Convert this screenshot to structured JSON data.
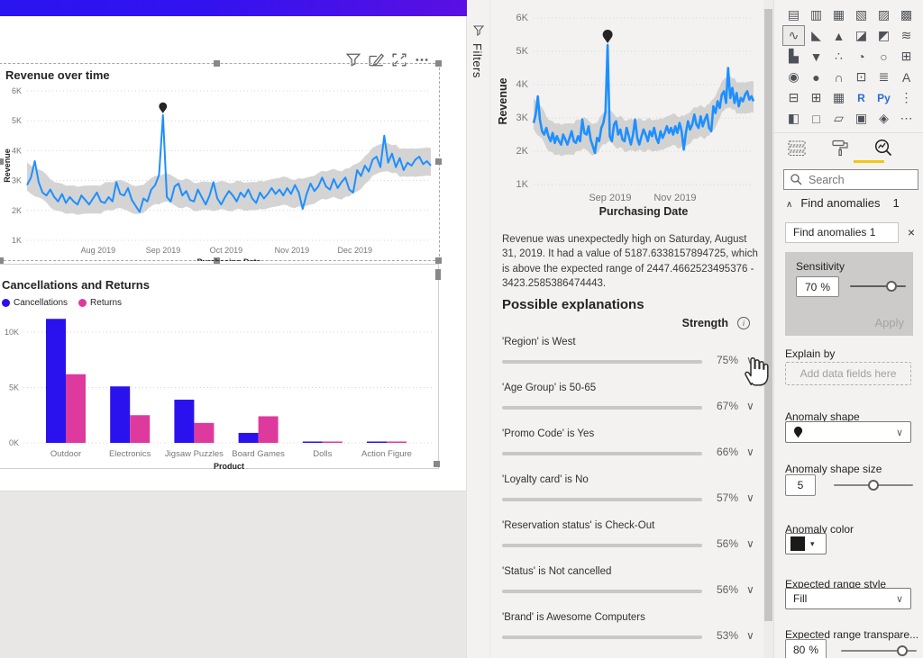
{
  "report": {
    "visual_header_icons": [
      "filter",
      "edit",
      "focus-mode",
      "more-options"
    ]
  },
  "filters_pane": {
    "title": "Filters"
  },
  "chart_data": [
    {
      "type": "line",
      "title": "Revenue over time",
      "xlabel": "Purchasing Date",
      "ylabel": "Revenue",
      "ylim": [
        1000,
        6000
      ],
      "y_ticks": [
        "1K",
        "2K",
        "3K",
        "4K",
        "5K",
        "6K"
      ],
      "x_ticks": [
        {
          "f": 0.176,
          "label": "Aug 2019"
        },
        {
          "f": 0.337,
          "label": "Sep 2019"
        },
        {
          "f": 0.493,
          "label": "Oct 2019"
        },
        {
          "f": 0.656,
          "label": "Nov 2019"
        },
        {
          "f": 0.812,
          "label": "Dec 2019"
        }
      ],
      "values_k": [
        2.85,
        3.1,
        3.65,
        2.95,
        2.6,
        2.5,
        2.7,
        2.45,
        2.3,
        2.55,
        2.25,
        2.45,
        2.3,
        2.2,
        2.5,
        2.35,
        2.2,
        2.4,
        2.6,
        2.3,
        2.25,
        2.45,
        2.3,
        2.95,
        2.55,
        2.5,
        2.75,
        2.35,
        2.15,
        1.95,
        2.4,
        2.3,
        2.7,
        2.85,
        3.2,
        5.19,
        2.45,
        2.3,
        2.8,
        2.9,
        2.5,
        2.65,
        2.35,
        2.3,
        2.7,
        2.45,
        2.2,
        2.5,
        2.95,
        2.4,
        2.2,
        2.45,
        2.65,
        2.5,
        2.3,
        2.6,
        2.45,
        2.7,
        2.4,
        2.25,
        2.6,
        2.4,
        2.55,
        2.75,
        2.55,
        2.7,
        2.5,
        2.75,
        2.55,
        2.85,
        2.6,
        2.05,
        2.55,
        2.9,
        2.65,
        2.8,
        3.1,
        2.8,
        2.7,
        3.05,
        2.75,
        2.95,
        3.1,
        2.7,
        2.6,
        3.35,
        3.15,
        3.5,
        3.3,
        3.7,
        3.8,
        3.45,
        4.5,
        3.6,
        3.9,
        3.45,
        3.75,
        3.35,
        3.6,
        3.5,
        3.7,
        3.8,
        3.55,
        3.65,
        3.5
      ],
      "anomaly": {
        "index": 35,
        "value": 5187.6338157894725,
        "date": "Saturday, August 31, 2019",
        "expected_low": 2447.4662523495376,
        "expected_high": 3423.2585386474443
      },
      "line_color": "#1e8fff",
      "band_color": "#c9c9c9",
      "marker_color": "#252423"
    },
    {
      "type": "bar",
      "title": "Cancellations and Returns",
      "xlabel": "Product",
      "y_ticks": [
        "0K",
        "5K",
        "10K"
      ],
      "categories": [
        "Outdoor",
        "Electronics",
        "Jigsaw Puzzles",
        "Board Games",
        "Dolls",
        "Action Figure"
      ],
      "series": [
        {
          "name": "Cancellations",
          "color": "#2a12ef",
          "values_k": [
            11.2,
            5.1,
            3.9,
            0.9,
            0.12,
            0.12
          ]
        },
        {
          "name": "Returns",
          "color": "#de3a9d",
          "values_k": [
            6.2,
            2.5,
            1.8,
            2.4,
            0.12,
            0.08
          ]
        }
      ]
    }
  ],
  "anomalies_pane": {
    "chart_x_ticks": [
      {
        "f": 0.348,
        "label": "Sep 2019"
      },
      {
        "f": 0.643,
        "label": "Nov 2019"
      }
    ],
    "explanation_text": "Revenue was unexpectedly high on Saturday, August 31, 2019. It had a value of 5187.6338157894725, which is above the expected range of 2447.4662523495376 - 3423.2585386474443.",
    "heading": "Possible explanations",
    "strength_label": "Strength",
    "explanations": [
      {
        "label": "'Region' is West",
        "strength_pct": 75
      },
      {
        "label": "'Age Group' is 50-65",
        "strength_pct": 67
      },
      {
        "label": "'Promo Code' is Yes",
        "strength_pct": 66
      },
      {
        "label": "'Loyalty card' is No",
        "strength_pct": 57
      },
      {
        "label": "'Reservation status' is Check-Out",
        "strength_pct": 56
      },
      {
        "label": "'Status' is Not cancelled",
        "strength_pct": 56
      },
      {
        "label": "'Brand' is Awesome Computers",
        "strength_pct": 53
      }
    ]
  },
  "viz_pane": {
    "gallery": [
      {
        "n": "stacked-bar-chart",
        "g": "▤"
      },
      {
        "n": "stacked-column-chart",
        "g": "▥"
      },
      {
        "n": "clustered-bar-chart",
        "g": "▦"
      },
      {
        "n": "clustered-column-chart",
        "g": "▧"
      },
      {
        "n": "100-stacked-bar-chart",
        "g": "▨"
      },
      {
        "n": "100-stacked-column-chart",
        "g": "▩"
      },
      {
        "n": "line-chart",
        "g": "∿",
        "sel": true
      },
      {
        "n": "area-chart",
        "g": "◣"
      },
      {
        "n": "stacked-area-chart",
        "g": "▲"
      },
      {
        "n": "line-and-stacked-column-chart",
        "g": "◪"
      },
      {
        "n": "line-and-clustered-column-chart",
        "g": "◩"
      },
      {
        "n": "ribbon-chart",
        "g": "≋"
      },
      {
        "n": "waterfall-chart",
        "g": "▙"
      },
      {
        "n": "funnel-chart",
        "g": "▼"
      },
      {
        "n": "scatter-chart",
        "g": "∴"
      },
      {
        "n": "pie-chart",
        "g": "◔"
      },
      {
        "n": "donut-chart",
        "g": "○"
      },
      {
        "n": "treemap",
        "g": "⊞"
      },
      {
        "n": "map",
        "g": "◉"
      },
      {
        "n": "filled-map",
        "g": "●"
      },
      {
        "n": "gauge",
        "g": "∩"
      },
      {
        "n": "card",
        "g": "⊡"
      },
      {
        "n": "multi-row-card",
        "g": "≣"
      },
      {
        "n": "kpi",
        "g": "A"
      },
      {
        "n": "slicer",
        "g": "⊟"
      },
      {
        "n": "table",
        "g": "⊞"
      },
      {
        "n": "matrix",
        "g": "▦"
      },
      {
        "n": "r-script-visual",
        "g": "R",
        "b": true
      },
      {
        "n": "python-visual",
        "g": "Py",
        "b": true
      },
      {
        "n": "decomposition-tree",
        "g": "⋮"
      },
      {
        "n": "key-influencers",
        "g": "◧"
      },
      {
        "n": "qna",
        "g": "□"
      },
      {
        "n": "smart-narrative",
        "g": "▱"
      },
      {
        "n": "paginated-report",
        "g": "▣"
      },
      {
        "n": "arcgis-map",
        "g": "◈"
      },
      {
        "n": "more-options",
        "g": "⋯"
      }
    ],
    "tabs": [
      {
        "name": "fields-tab"
      },
      {
        "name": "format-tab"
      },
      {
        "name": "analytics-tab",
        "selected": true
      }
    ],
    "search_placeholder": "Search",
    "find_section": {
      "label": "Find anomalies",
      "count": "1"
    },
    "anomaly_card": {
      "name": "Find anomalies 1",
      "sensitivity_label": "Sensitivity",
      "sensitivity_value": "70",
      "unit": "%",
      "apply_label": "Apply"
    },
    "fields": {
      "explain_by": {
        "label": "Explain by",
        "placeholder": "Add data fields here"
      },
      "anomaly_shape": {
        "label": "Anomaly shape"
      },
      "anomaly_shape_size": {
        "label": "Anomaly shape size",
        "value": "5"
      },
      "anomaly_color": {
        "label": "Anomaly color"
      },
      "expected_range_style": {
        "label": "Expected range style",
        "value": "Fill"
      },
      "expected_range_transparency": {
        "label": "Expected range transpare...",
        "value": "80",
        "unit": "%"
      }
    }
  }
}
